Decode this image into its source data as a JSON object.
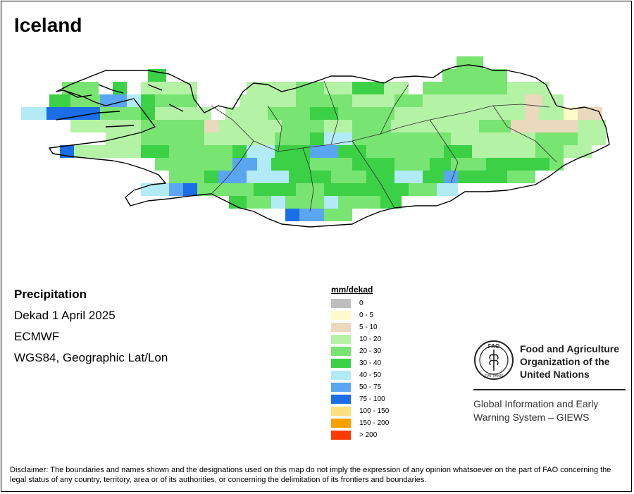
{
  "title": "Iceland",
  "info": {
    "variable": "Precipitation",
    "period": "Dekad 1 April 2025",
    "source": "ECMWF",
    "projection": "WGS84, Geographic Lat/Lon"
  },
  "legend": {
    "title": "mm/dekad",
    "items": [
      {
        "label": "0",
        "color": "#bebebe"
      },
      {
        "label": "0 - 5",
        "color": "#fffccc"
      },
      {
        "label": "5 - 10",
        "color": "#ead9bd"
      },
      {
        "label": "10 - 20",
        "color": "#b4f2a6"
      },
      {
        "label": "20 - 30",
        "color": "#78e471"
      },
      {
        "label": "30 - 40",
        "color": "#3cd046"
      },
      {
        "label": "40 - 50",
        "color": "#b2eaf6"
      },
      {
        "label": "50 - 75",
        "color": "#5aa6f0"
      },
      {
        "label": "75 - 100",
        "color": "#1c6ee6"
      },
      {
        "label": "100 - 150",
        "color": "#fde07c"
      },
      {
        "label": "150 - 200",
        "color": "#fca000"
      },
      {
        "label": "> 200",
        "color": "#fa3a00"
      }
    ]
  },
  "org": {
    "name_line1": "Food and Agriculture",
    "name_line2": "Organization of the",
    "name_line3": "United Nations",
    "emblem_text": "FAO",
    "emblem_motto": "FIAT PANIS",
    "system_line1": "Global Information and Early",
    "system_line2": "Warning System – GIEWS"
  },
  "disclaimer": "Disclaimer: The boundaries and names shown and the designations used on this map do not imply the expression of any opinion whatsoever on the part of FAO concerning the legal status of any country, territory, area or of its authorities, or concerning the delimitation of its frontiers and boundaries."
}
